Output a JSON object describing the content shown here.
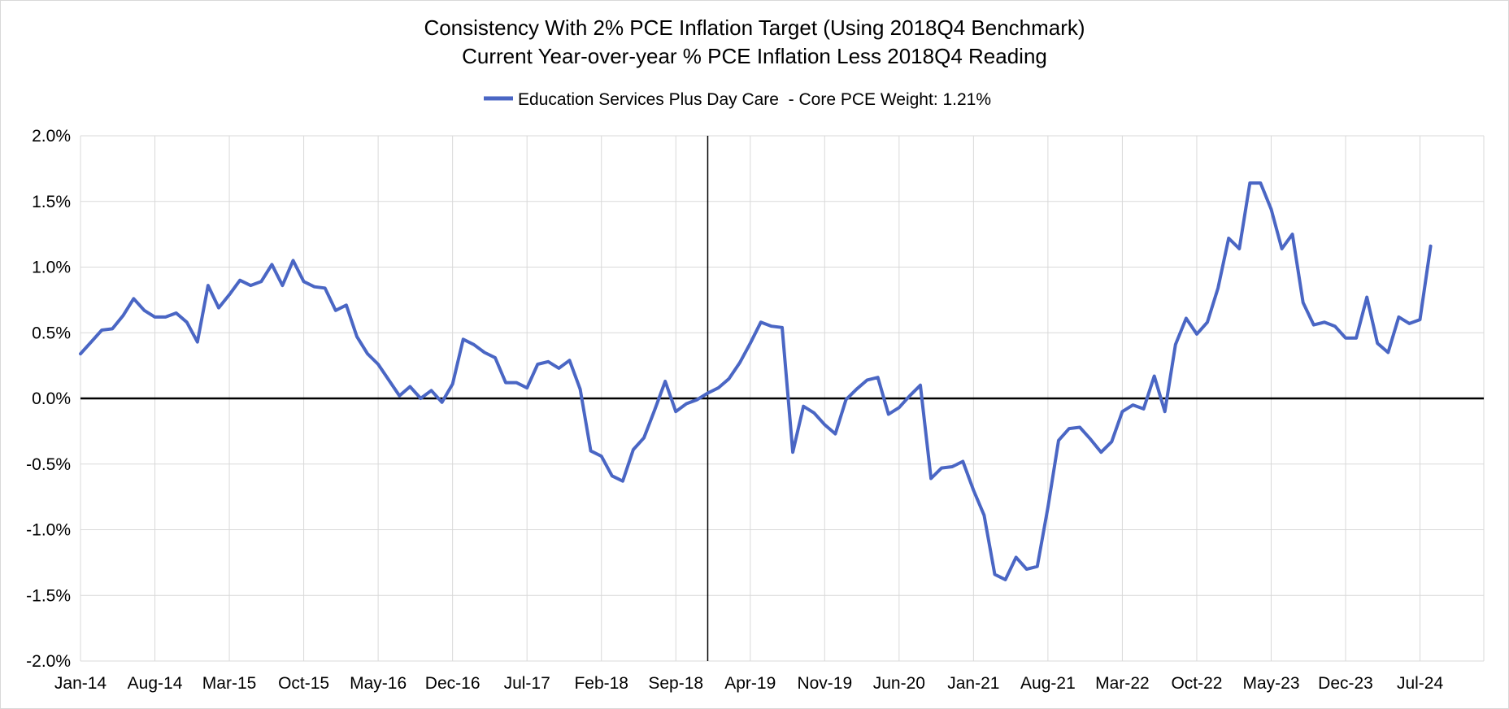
{
  "chart_data": {
    "type": "line",
    "title": "Consistency With 2% PCE Inflation Target (Using 2018Q4 Benchmark)",
    "subtitle": "Current Year-over-year % PCE Inflation Less 2018Q4 Reading",
    "legend_position": "top",
    "grid": true,
    "ylim": [
      -2.0,
      2.0
    ],
    "y_ticks": [
      "2.0%",
      "1.5%",
      "1.0%",
      "0.5%",
      "0.0%",
      "-0.5%",
      "-1.0%",
      "-1.5%",
      "-2.0%"
    ],
    "x_ticks": [
      "Jan-14",
      "Aug-14",
      "Mar-15",
      "Oct-15",
      "May-16",
      "Dec-16",
      "Jul-17",
      "Feb-18",
      "Sep-18",
      "Apr-19",
      "Nov-19",
      "Jun-20",
      "Jan-21",
      "Aug-21",
      "Mar-22",
      "Oct-22",
      "May-23",
      "Dec-23",
      "Jul-24"
    ],
    "x_range": [
      "Jan-14",
      "Dec-24"
    ],
    "reference_line_date": "Dec-18",
    "series": [
      {
        "name": "Education Services Plus Day Care  - Core PCE Weight: 1.21%",
        "color": "#4a66c4",
        "start": "Jan-14",
        "frequency": "monthly",
        "values": [
          0.34,
          0.43,
          0.52,
          0.53,
          0.63,
          0.76,
          0.67,
          0.62,
          0.62,
          0.65,
          0.58,
          0.43,
          0.86,
          0.69,
          0.79,
          0.9,
          0.86,
          0.89,
          1.02,
          0.86,
          1.05,
          0.89,
          0.85,
          0.84,
          0.67,
          0.71,
          0.47,
          0.34,
          0.26,
          0.14,
          0.02,
          0.09,
          0.0,
          0.06,
          -0.03,
          0.11,
          0.45,
          0.41,
          0.35,
          0.31,
          0.12,
          0.12,
          0.08,
          0.26,
          0.28,
          0.23,
          0.29,
          0.07,
          -0.4,
          -0.44,
          -0.59,
          -0.63,
          -0.39,
          -0.3,
          -0.09,
          0.13,
          -0.1,
          -0.04,
          -0.01,
          0.04,
          0.08,
          0.15,
          0.27,
          0.42,
          0.58,
          0.55,
          0.54,
          -0.41,
          -0.06,
          -0.11,
          -0.2,
          -0.27,
          -0.01,
          0.07,
          0.14,
          0.16,
          -0.12,
          -0.07,
          0.02,
          0.1,
          -0.61,
          -0.53,
          -0.52,
          -0.48,
          -0.7,
          -0.89,
          -1.34,
          -1.38,
          -1.21,
          -1.3,
          -1.28,
          -0.83,
          -0.32,
          -0.23,
          -0.22,
          -0.31,
          -0.41,
          -0.33,
          -0.1,
          -0.05,
          -0.08,
          0.17,
          -0.1,
          0.41,
          0.61,
          0.49,
          0.58,
          0.84,
          1.22,
          1.14,
          1.64,
          1.64,
          1.44,
          1.14,
          1.25,
          0.73,
          0.56,
          0.58,
          0.55,
          0.46,
          0.46,
          0.77,
          0.42,
          0.35,
          0.62,
          0.57,
          0.6,
          1.16
        ]
      }
    ]
  }
}
